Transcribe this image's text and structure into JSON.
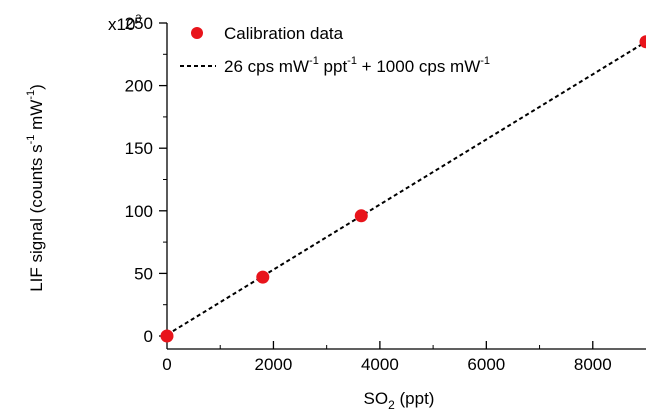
{
  "chart_data": {
    "type": "scatter",
    "xlabel": {
      "base": "SO",
      "sub": "2",
      "tail": " (ppt)"
    },
    "ylabel": {
      "parts": [
        "LIF signal (counts s",
        "-1",
        " mW",
        "-1",
        ")"
      ]
    },
    "xlim": [
      0,
      9000
    ],
    "ylim": [
      0,
      250000
    ],
    "xticks": [
      0,
      2000,
      4000,
      6000,
      8000
    ],
    "xtick_labels": [
      "0",
      "2000",
      "4000",
      "6000",
      "8000"
    ],
    "yticks": [
      0,
      50000,
      100000,
      150000,
      200000,
      250000
    ],
    "ytick_labels": [
      "0",
      "50",
      "100",
      "150",
      "200",
      "250"
    ],
    "y_multiplier": {
      "prefix": "x10",
      "exp": "3"
    },
    "grid": false,
    "legend_position": "top-left",
    "series": [
      {
        "name": "Calibration data",
        "kind": "scatter",
        "color": "#e8141b",
        "x": [
          0,
          1800,
          3650,
          9000
        ],
        "y": [
          0,
          47000,
          96000,
          235000
        ]
      },
      {
        "name_parts": [
          "26 cps mW",
          "-1",
          " ppt",
          "-1",
          " + 1000 cps mW",
          "-1"
        ],
        "kind": "line",
        "style": "dashed",
        "color": "#000000",
        "slope": 26,
        "intercept": 1000
      }
    ]
  }
}
